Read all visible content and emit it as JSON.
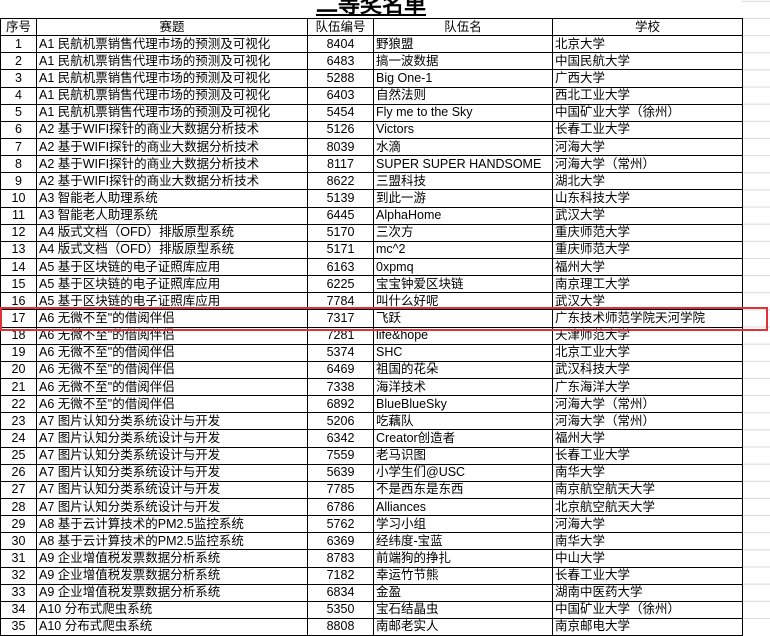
{
  "sheet": {
    "title": "二等奖名单",
    "headers": [
      "序号",
      "赛题",
      "队伍编号",
      "队伍名",
      "学校"
    ],
    "rows": [
      [
        "1",
        "A1 民航机票销售代理市场的预测及可视化",
        "8404",
        "野狼盟",
        "北京大学"
      ],
      [
        "2",
        "A1 民航机票销售代理市场的预测及可视化",
        "6483",
        "搞一波数据",
        "中国民航大学"
      ],
      [
        "3",
        "A1 民航机票销售代理市场的预测及可视化",
        "5288",
        "Big One-1",
        "广西大学"
      ],
      [
        "4",
        "A1 民航机票销售代理市场的预测及可视化",
        "6403",
        "自然法则",
        "西北工业大学"
      ],
      [
        "5",
        "A1 民航机票销售代理市场的预测及可视化",
        "5454",
        "Fly me to the Sky",
        "中国矿业大学（徐州）"
      ],
      [
        "6",
        "A2 基于WIFI探针的商业大数据分析技术",
        "5126",
        "Victors",
        "长春工业大学"
      ],
      [
        "7",
        "A2 基于WIFI探针的商业大数据分析技术",
        "8039",
        "水滴",
        "河海大学"
      ],
      [
        "8",
        "A2 基于WIFI探针的商业大数据分析技术",
        "8117",
        "SUPER SUPER HANDSOME",
        "河海大学（常州）"
      ],
      [
        "9",
        "A2 基于WIFI探针的商业大数据分析技术",
        "8622",
        "三盟科技",
        "湖北大学"
      ],
      [
        "10",
        "A3 智能老人助理系统",
        "5139",
        "到此一游",
        "山东科技大学"
      ],
      [
        "11",
        "A3 智能老人助理系统",
        "6445",
        "AlphaHome",
        "武汉大学"
      ],
      [
        "12",
        "A4 版式文档（OFD）排版原型系统",
        "5170",
        "三次方",
        "重庆师范大学"
      ],
      [
        "13",
        "A4 版式文档（OFD）排版原型系统",
        "5171",
        "mc^2",
        "重庆师范大学"
      ],
      [
        "14",
        "A5 基于区块链的电子证照库应用",
        "6163",
        "0xpmq",
        "福州大学"
      ],
      [
        "15",
        "A5 基于区块链的电子证照库应用",
        "6225",
        "宝宝钟爱区块链",
        "南京理工大学"
      ],
      [
        "16",
        "A5 基于区块链的电子证照库应用",
        "7784",
        "叫什么好呢",
        "武汉大学"
      ],
      [
        "17",
        "A6 无微不至\"的借阅伴侣",
        "7317",
        "飞跃",
        "广东技术师范学院天河学院"
      ],
      [
        "18",
        "A6 无微不至\"的借阅伴侣",
        "7281",
        "life&hope",
        "天津师范大学"
      ],
      [
        "19",
        "A6 无微不至\"的借阅伴侣",
        "5374",
        "SHC",
        "北京工业大学"
      ],
      [
        "20",
        "A6 无微不至\"的借阅伴侣",
        "6469",
        "祖国的花朵",
        "武汉科技大学"
      ],
      [
        "21",
        "A6 无微不至\"的借阅伴侣",
        "7338",
        "海洋技术",
        "广东海洋大学"
      ],
      [
        "22",
        "A6 无微不至\"的借阅伴侣",
        "6892",
        "BlueBlueSky",
        "河海大学（常州）"
      ],
      [
        "23",
        "A7 图片认知分类系统设计与开发",
        "5206",
        "吃藕队",
        "河海大学（常州）"
      ],
      [
        "24",
        "A7 图片认知分类系统设计与开发",
        "6342",
        "Creator创造者",
        "福州大学"
      ],
      [
        "25",
        "A7 图片认知分类系统设计与开发",
        "7559",
        "老马识图",
        "长春工业大学"
      ],
      [
        "26",
        "A7 图片认知分类系统设计与开发",
        "5639",
        "小学生们@USC",
        "南华大学"
      ],
      [
        "27",
        "A7 图片认知分类系统设计与开发",
        "7785",
        "不是西东是东西",
        "南京航空航天大学"
      ],
      [
        "28",
        "A7 图片认知分类系统设计与开发",
        "6786",
        "Alliances",
        "北京航空航天大学"
      ],
      [
        "29",
        "A8 基于云计算技术的PM2.5监控系统",
        "5762",
        "学习小组",
        "河海大学"
      ],
      [
        "30",
        "A8 基于云计算技术的PM2.5监控系统",
        "6369",
        "经纬度-宝蓝",
        "南华大学"
      ],
      [
        "31",
        "A9 企业增值税发票数据分析系统",
        "8783",
        "前端狗的挣扎",
        "中山大学"
      ],
      [
        "32",
        "A9 企业增值税发票数据分析系统",
        "7182",
        "幸运竹节熊",
        "长春工业大学"
      ],
      [
        "33",
        "A9 企业增值税发票数据分析系统",
        "6834",
        "金盈",
        "湖南中医药大学"
      ],
      [
        "34",
        "A10 分布式爬虫系统",
        "5350",
        "宝石结晶虫",
        "中国矿业大学（徐州）"
      ],
      [
        "35",
        "A10 分布式爬虫系统",
        "8808",
        "南邮老实人",
        "南京邮电大学"
      ]
    ],
    "highlighted_row": 17,
    "highlight_color": "#e0303a"
  }
}
